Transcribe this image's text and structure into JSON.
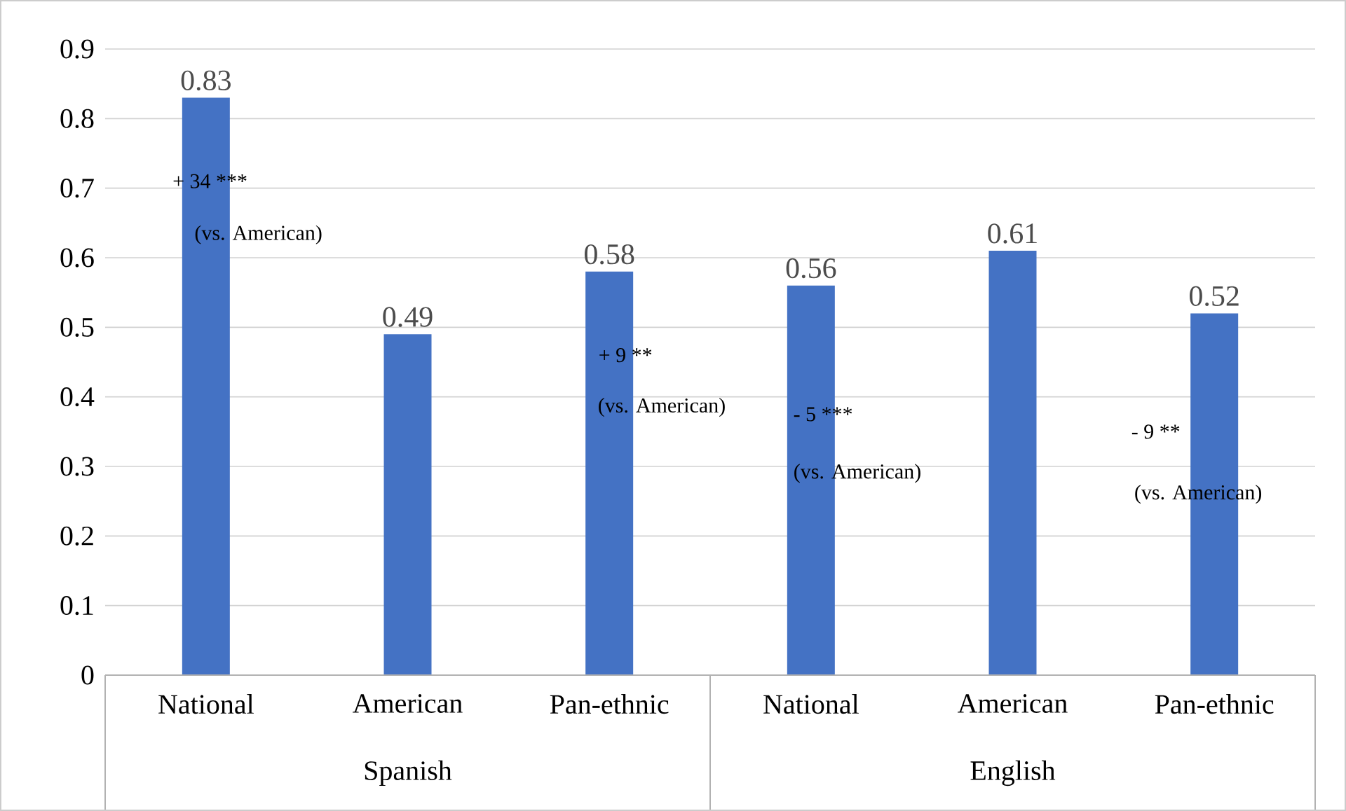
{
  "chart_data": {
    "type": "bar",
    "categories": [
      "National",
      "American",
      "Pan-ethnic",
      "National",
      "American",
      "Pan-ethnic"
    ],
    "values": [
      0.83,
      0.49,
      0.58,
      0.56,
      0.61,
      0.52
    ],
    "color": "#4472c4",
    "ylim": [
      0,
      0.9
    ],
    "yticks": [
      0,
      0.1,
      0.2,
      0.3,
      0.4,
      0.5,
      0.6,
      0.7,
      0.8,
      0.9
    ],
    "grid": "y",
    "data_labels": true,
    "annotations": [
      "+ 34 ***",
      "(vs. American)",
      "+ 9 **",
      "(vs. American)",
      "- 5 ***",
      "(vs. American)",
      "- 9 **",
      "(vs. American)",
      "Spanish",
      "English"
    ]
  }
}
